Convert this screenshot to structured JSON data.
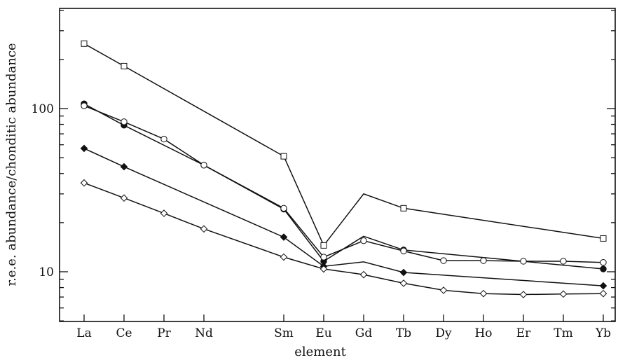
{
  "chart_data": {
    "type": "line",
    "title": "",
    "xlabel": "element",
    "ylabel": "r.e.e. abundance/chonditic abundance",
    "yscale": "log",
    "ylim": [
      5,
      400
    ],
    "categories": [
      "La",
      "Ce",
      "Pr",
      "Nd",
      "Sm",
      "Eu",
      "Gd",
      "Tb",
      "Dy",
      "Ho",
      "Er",
      "Tm",
      "Yb"
    ],
    "category_positions": [
      1,
      2,
      3,
      4,
      6,
      7,
      8,
      9,
      10,
      11,
      12,
      13,
      14
    ],
    "yticks": [
      10,
      100
    ],
    "ytick_labels": [
      "10",
      "100"
    ],
    "grid": false,
    "series": [
      {
        "marker": "open-square",
        "points": [
          [
            "La",
            250
          ],
          [
            "Ce",
            182
          ],
          [
            "Sm",
            51
          ],
          [
            "Eu",
            14.5
          ],
          [
            "Gd",
            30,
            "line-only"
          ],
          [
            "Tb",
            24.5
          ],
          [
            "Yb",
            16
          ]
        ]
      },
      {
        "marker": "filled-circle",
        "points": [
          [
            "La",
            107
          ],
          [
            "Ce",
            79
          ],
          [
            "Nd",
            45
          ],
          [
            "Sm",
            24.2
          ],
          [
            "Eu",
            11.6
          ],
          [
            "Gd",
            16.5,
            "line-only"
          ],
          [
            "Tb",
            13.6
          ],
          [
            "Yb",
            10.4
          ]
        ]
      },
      {
        "marker": "open-circle",
        "points": [
          [
            "La",
            104
          ],
          [
            "Ce",
            83
          ],
          [
            "Pr",
            65
          ],
          [
            "Nd",
            45
          ],
          [
            "Sm",
            24.5
          ],
          [
            "Eu",
            12.3
          ],
          [
            "Gd",
            15.5
          ],
          [
            "Tb",
            13.4
          ],
          [
            "Dy",
            11.7
          ],
          [
            "Ho",
            11.7
          ],
          [
            "Er",
            11.6
          ],
          [
            "Tm",
            11.6
          ],
          [
            "Yb",
            11.4
          ]
        ]
      },
      {
        "marker": "filled-diamond",
        "points": [
          [
            "La",
            57
          ],
          [
            "Ce",
            44
          ],
          [
            "Sm",
            16.3
          ],
          [
            "Eu",
            10.8
          ],
          [
            "Gd",
            11.5,
            "line-only"
          ],
          [
            "Tb",
            9.9
          ],
          [
            "Yb",
            8.2
          ]
        ]
      },
      {
        "marker": "open-diamond",
        "points": [
          [
            "La",
            35
          ],
          [
            "Ce",
            28.3
          ],
          [
            "Pr",
            22.8
          ],
          [
            "Nd",
            18.3
          ],
          [
            "Sm",
            12.3
          ],
          [
            "Eu",
            10.4
          ],
          [
            "Gd",
            9.6
          ],
          [
            "Tb",
            8.5
          ],
          [
            "Dy",
            7.7
          ],
          [
            "Ho",
            7.35
          ],
          [
            "Er",
            7.25
          ],
          [
            "Tm",
            7.3
          ],
          [
            "Yb",
            7.35
          ]
        ]
      }
    ]
  }
}
